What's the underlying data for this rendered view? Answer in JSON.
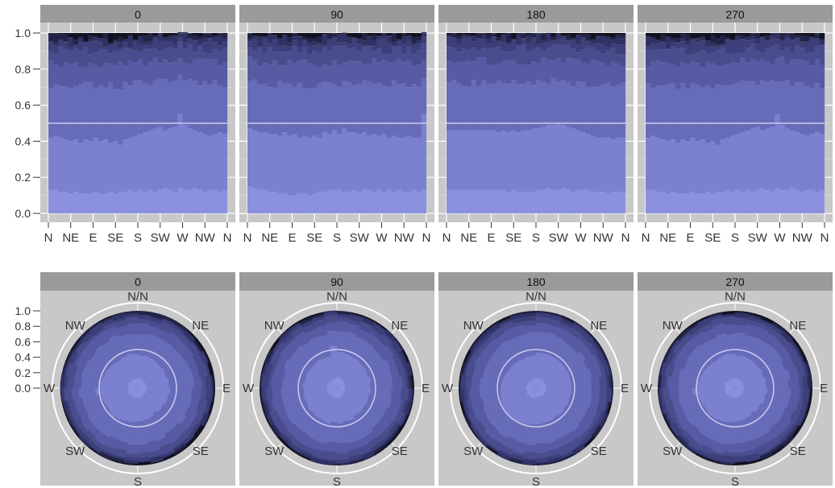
{
  "chart_data": [
    {
      "type": "bar",
      "subtype": "stacked-proportion-faceted",
      "facet_labels": [
        "0",
        "90",
        "180",
        "270"
      ],
      "x_tick_labels": [
        "N",
        "NE",
        "E",
        "SE",
        "S",
        "SW",
        "W",
        "NW",
        "N"
      ],
      "y_tick_labels": [
        "0.0",
        "0.2",
        "0.4",
        "0.6",
        "0.8",
        "1.0"
      ],
      "ylim": [
        0,
        1
      ],
      "reference_line": 0.5,
      "n_bins": 36,
      "n_layers": 9,
      "panel_background": "#c8c8c8",
      "strip_background": "#9a9a9a",
      "layer_colors": [
        "#8b91de",
        "#7b81cf",
        "#676cb9",
        "#575ba3",
        "#494d8e",
        "#3c3f79",
        "#303264",
        "#222447",
        "#111122"
      ],
      "layer_boundaries_approx": [
        0.12,
        0.48,
        0.73,
        0.85,
        0.92,
        0.96,
        0.98,
        0.995,
        1.0
      ],
      "facets": [
        {
          "label": "0",
          "layer1_top": [
            0.13,
            0.13,
            0.12,
            0.12,
            0.11,
            0.12,
            0.11,
            0.11,
            0.11,
            0.12,
            0.11,
            0.11,
            0.12,
            0.11,
            0.12,
            0.12,
            0.13,
            0.12,
            0.13,
            0.12,
            0.13,
            0.12,
            0.13,
            0.14,
            0.13,
            0.12,
            0.14,
            0.13,
            0.13,
            0.14,
            0.13,
            0.12,
            0.13,
            0.13,
            0.12,
            0.13
          ],
          "layer2_top": [
            0.42,
            0.43,
            0.42,
            0.41,
            0.4,
            0.41,
            0.39,
            0.41,
            0.4,
            0.42,
            0.4,
            0.41,
            0.39,
            0.4,
            0.38,
            0.41,
            0.42,
            0.43,
            0.44,
            0.45,
            0.46,
            0.47,
            0.48,
            0.46,
            0.47,
            0.48,
            0.55,
            0.49,
            0.47,
            0.46,
            0.45,
            0.44,
            0.43,
            0.44,
            0.45,
            0.44
          ]
        },
        {
          "label": "90",
          "layer1_top": [
            0.15,
            0.14,
            0.13,
            0.13,
            0.12,
            0.12,
            0.11,
            0.11,
            0.1,
            0.1,
            0.11,
            0.11,
            0.1,
            0.11,
            0.12,
            0.12,
            0.13,
            0.13,
            0.13,
            0.12,
            0.12,
            0.13,
            0.12,
            0.13,
            0.13,
            0.12,
            0.13,
            0.12,
            0.13,
            0.12,
            0.13,
            0.12,
            0.12,
            0.13,
            0.12,
            0.13
          ],
          "layer2_top": [
            0.47,
            0.46,
            0.45,
            0.45,
            0.44,
            0.44,
            0.43,
            0.45,
            0.43,
            0.44,
            0.42,
            0.43,
            0.42,
            0.43,
            0.42,
            0.45,
            0.44,
            0.46,
            0.44,
            0.47,
            0.45,
            0.45,
            0.44,
            0.45,
            0.43,
            0.44,
            0.43,
            0.44,
            0.42,
            0.43,
            0.42,
            0.42,
            0.43,
            0.42,
            0.42,
            0.55
          ]
        },
        {
          "label": "180",
          "layer1_top": [
            0.13,
            0.13,
            0.13,
            0.13,
            0.13,
            0.13,
            0.13,
            0.13,
            0.13,
            0.13,
            0.13,
            0.13,
            0.12,
            0.13,
            0.12,
            0.12,
            0.12,
            0.12,
            0.13,
            0.13,
            0.14,
            0.13,
            0.13,
            0.14,
            0.13,
            0.12,
            0.13,
            0.13,
            0.13,
            0.12,
            0.12,
            0.12,
            0.11,
            0.12,
            0.12,
            0.12
          ],
          "layer2_top": [
            0.46,
            0.46,
            0.46,
            0.46,
            0.46,
            0.46,
            0.46,
            0.46,
            0.46,
            0.46,
            0.45,
            0.46,
            0.45,
            0.46,
            0.45,
            0.46,
            0.46,
            0.47,
            0.47,
            0.48,
            0.49,
            0.49,
            0.5,
            0.49,
            0.48,
            0.47,
            0.46,
            0.45,
            0.44,
            0.43,
            0.42,
            0.42,
            0.42,
            0.41,
            0.42,
            0.42
          ]
        },
        {
          "label": "270",
          "layer1_top": [
            0.13,
            0.13,
            0.12,
            0.12,
            0.11,
            0.12,
            0.11,
            0.11,
            0.11,
            0.12,
            0.11,
            0.11,
            0.12,
            0.11,
            0.12,
            0.12,
            0.13,
            0.12,
            0.13,
            0.12,
            0.13,
            0.12,
            0.13,
            0.14,
            0.13,
            0.12,
            0.14,
            0.13,
            0.13,
            0.14,
            0.13,
            0.12,
            0.13,
            0.13,
            0.12,
            0.13
          ],
          "layer2_top": [
            0.42,
            0.43,
            0.42,
            0.41,
            0.4,
            0.41,
            0.39,
            0.41,
            0.4,
            0.42,
            0.4,
            0.41,
            0.39,
            0.4,
            0.38,
            0.41,
            0.42,
            0.43,
            0.44,
            0.45,
            0.46,
            0.47,
            0.48,
            0.46,
            0.47,
            0.48,
            0.55,
            0.49,
            0.47,
            0.46,
            0.45,
            0.44,
            0.43,
            0.44,
            0.45,
            0.44
          ]
        }
      ]
    },
    {
      "type": "bar",
      "subtype": "stacked-proportion-polar-faceted",
      "facet_labels": [
        "0",
        "90",
        "180",
        "270"
      ],
      "direction_labels": [
        "N/N",
        "NE",
        "E",
        "SE",
        "S",
        "SW",
        "W",
        "NW"
      ],
      "r_tick_labels": [
        "0.0",
        "0.2",
        "0.4",
        "0.6",
        "0.8",
        "1.0"
      ],
      "reference_line": 0.5,
      "note": "same data as the rectangular facets, drawn in polar coordinates"
    }
  ]
}
